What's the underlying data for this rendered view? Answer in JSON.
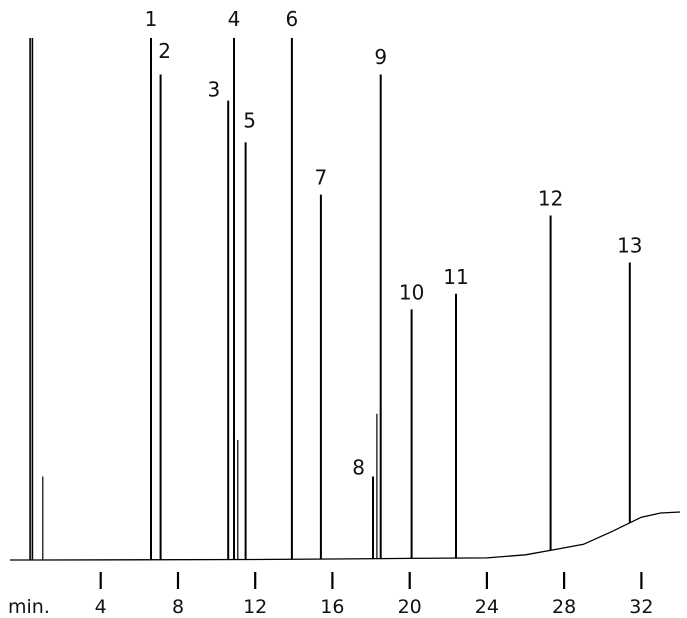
{
  "chart_data": {
    "type": "line",
    "title": "",
    "xlabel": "",
    "ylabel": "",
    "x_unit_label": "min.",
    "xlim": [
      -0.7,
      34
    ],
    "ylim": [
      0,
      100
    ],
    "x_ticks": [
      4,
      8,
      12,
      16,
      20,
      24,
      28,
      32
    ],
    "x_tick_labels": [
      "4",
      "8",
      "12",
      "16",
      "20",
      "24",
      "28",
      "32"
    ],
    "grid": false,
    "line_color": "#000000",
    "baseline": [
      [
        -0.7,
        0.0
      ],
      [
        0.8,
        0.0
      ],
      [
        12.0,
        0.1
      ],
      [
        16.0,
        0.2
      ],
      [
        20.0,
        0.3
      ],
      [
        24.0,
        0.4
      ],
      [
        26.0,
        1.0
      ],
      [
        27.5,
        2.0
      ],
      [
        29.0,
        3.0
      ],
      [
        30.5,
        5.5
      ],
      [
        32.0,
        8.2
      ],
      [
        33.0,
        9.0
      ],
      [
        34.0,
        9.2
      ]
    ],
    "solvent_peak": {
      "rt": 0.4,
      "height": 100
    },
    "minor_peaks": [
      {
        "rt": 1.0,
        "height": 16
      },
      {
        "rt": 11.1,
        "height": 23
      },
      {
        "rt": 18.3,
        "height": 28
      }
    ],
    "peaks": [
      {
        "label": "1",
        "rt": 6.6,
        "height": 100
      },
      {
        "label": "2",
        "rt": 7.1,
        "height": 93
      },
      {
        "label": "3",
        "rt": 10.6,
        "height": 88
      },
      {
        "label": "4",
        "rt": 10.9,
        "height": 100
      },
      {
        "label": "5",
        "rt": 11.5,
        "height": 80
      },
      {
        "label": "6",
        "rt": 13.9,
        "height": 100
      },
      {
        "label": "7",
        "rt": 15.4,
        "height": 70
      },
      {
        "label": "8",
        "rt": 18.1,
        "height": 16
      },
      {
        "label": "9",
        "rt": 18.5,
        "height": 93
      },
      {
        "label": "10",
        "rt": 20.1,
        "height": 48
      },
      {
        "label": "11",
        "rt": 22.4,
        "height": 51
      },
      {
        "label": "12",
        "rt": 27.3,
        "height": 66
      },
      {
        "label": "13",
        "rt": 31.4,
        "height": 57
      }
    ]
  }
}
